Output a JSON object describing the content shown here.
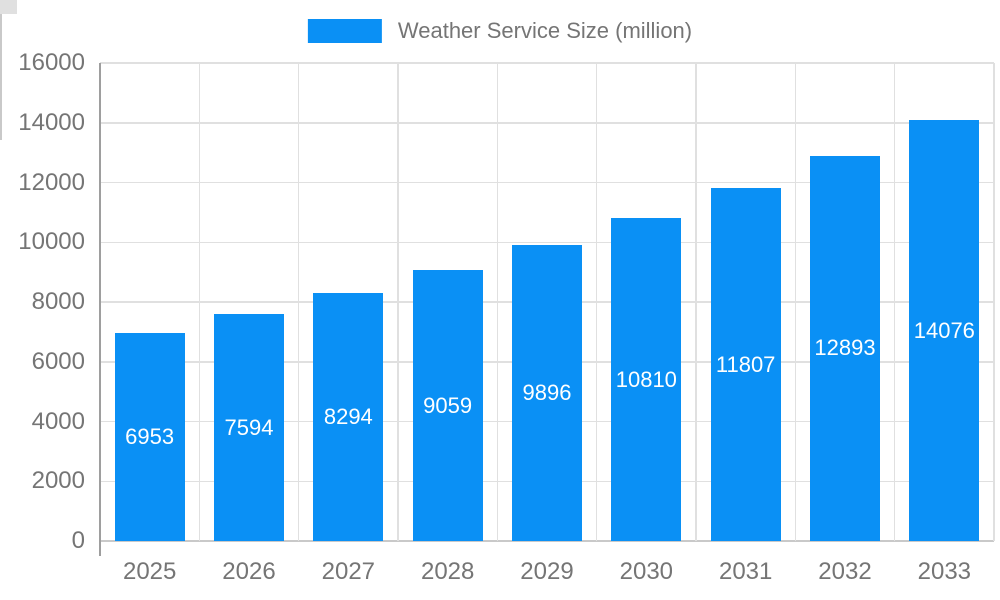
{
  "legend": {
    "label": "Weather Service Size (million)"
  },
  "colors": {
    "bar": "#0a90f5",
    "bar_label": "#ffffff",
    "axis_text": "#757575",
    "legend_text": "#757575",
    "grid_line": "#e0e0e0",
    "axis_line": "#9e9e9e",
    "tick_line": "#c9c9c9",
    "background": "#ffffff"
  },
  "chart_data": {
    "type": "bar",
    "title": "",
    "categories": [
      "2025",
      "2026",
      "2027",
      "2028",
      "2029",
      "2030",
      "2031",
      "2032",
      "2033"
    ],
    "series": [
      {
        "name": "Weather Service Size (million)",
        "color": "#0a90f5",
        "values": [
          6953,
          7594,
          8294,
          9059,
          9896,
          10810,
          11807,
          12893,
          14076
        ]
      }
    ],
    "xlabel": "",
    "ylabel": "",
    "ylim": [
      0,
      16000
    ],
    "ytick_step": 2000,
    "yticks": [
      0,
      2000,
      4000,
      6000,
      8000,
      10000,
      12000,
      14000,
      16000
    ],
    "grid": true,
    "legend_position": "top",
    "data_labels": "inside-middle"
  }
}
